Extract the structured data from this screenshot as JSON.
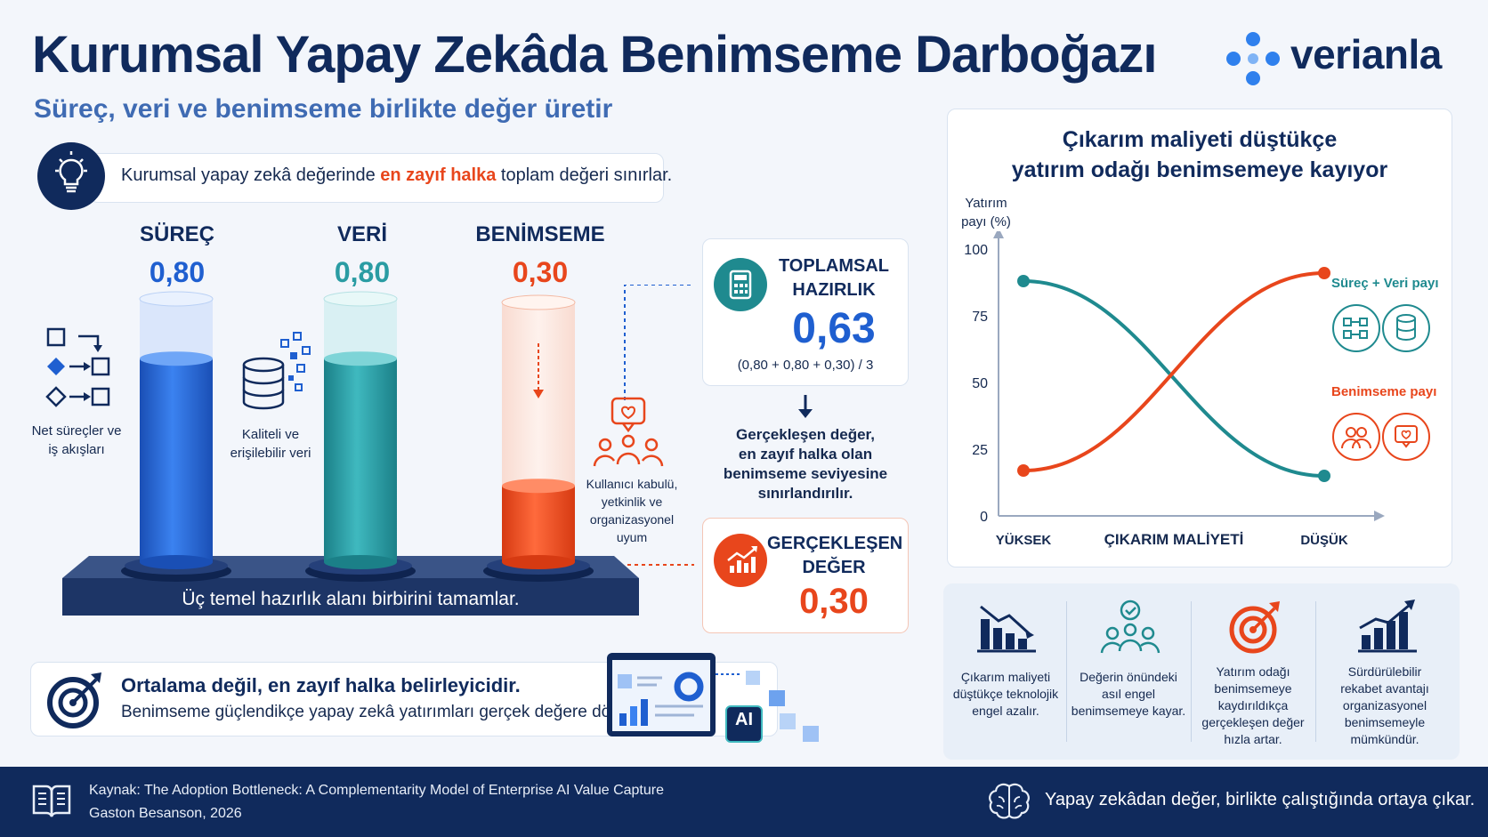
{
  "header": {
    "title": "Kurumsal Yapay Zekâda Benimseme Darboğazı",
    "subtitle": "Süreç, veri ve benimseme birlikte değer üretir",
    "brand": "verianla"
  },
  "insight": {
    "before": "Kurumsal yapay zekâ değerinde ",
    "highlight": "en zayıf halka",
    "after": " toplam değeri sınırlar."
  },
  "pillars": [
    {
      "title": "SÜREÇ",
      "value_label": "0,80",
      "value": 0.8,
      "color": "#1f5fd0",
      "caption_lines": [
        "Net süreçler ve",
        "iş akışları"
      ]
    },
    {
      "title": "VERİ",
      "value_label": "0,80",
      "value": 0.8,
      "color": "#2a9ca3",
      "caption_lines": [
        "Kaliteli ve",
        "erişilebilir veri"
      ]
    },
    {
      "title": "BENİMSEME",
      "value_label": "0,30",
      "value": 0.3,
      "color": "#e8461c",
      "caption_lines": [
        "Kullanıcı kabulü,",
        "yetkinlik ve",
        "organizasyonel",
        "uyum"
      ]
    }
  ],
  "platform_label": "Üç temel hazırlık alanı birbirini tamamlar.",
  "readiness": {
    "title_lines": [
      "TOPLAMSAL",
      "HAZIRLIK"
    ],
    "value": "0,63",
    "formula": "(0,80 + 0,80 + 0,30) / 3"
  },
  "realized_note_lines": [
    "Gerçekleşen değer,",
    "en zayıf halka olan",
    "benimseme seviyesine",
    "sınırlandırılır."
  ],
  "realized": {
    "title_lines": [
      "GERÇEKLEŞEN",
      "DEĞER"
    ],
    "value": "0,30"
  },
  "bottom_card": {
    "title": "Ortalama değil, en zayıf halka belirleyicidir.",
    "text": "Benimseme güçlendikçe yapay zekâ yatırımları gerçek değere dönüşür.",
    "ai_badge": "AI"
  },
  "chart_data": {
    "type": "line",
    "title_lines": [
      "Çıkarım maliyeti düştükçe",
      "yatırım odağı benimsemeye kayıyor"
    ],
    "ylabel_lines": [
      "Yatırım",
      "payı (%)"
    ],
    "xlabel": "ÇIKARIM MALİYETİ",
    "x_categories": [
      "YÜKSEK",
      "DÜŞÜK"
    ],
    "yticks": [
      0,
      25,
      50,
      75,
      100
    ],
    "ylim": [
      0,
      100
    ],
    "grid": false,
    "series": [
      {
        "name": "Süreç + Veri payı",
        "color": "#1f8a8f",
        "values": [
          88,
          15
        ]
      },
      {
        "name": "Benimseme payı",
        "color": "#e8461c",
        "values": [
          17,
          91
        ]
      }
    ]
  },
  "icon_facts": [
    {
      "icon": "declining-chart-icon",
      "lines": [
        "Çıkarım maliyeti",
        "düştükçe teknolojik",
        "engel azalır."
      ]
    },
    {
      "icon": "people-check-icon",
      "lines": [
        "Değerin önündeki",
        "asıl engel",
        "benimsemeye kayar."
      ]
    },
    {
      "icon": "target-icon",
      "lines": [
        "Yatırım odağı",
        "benimsemeye",
        "kaydırıldıkça",
        "gerçekleşen değer",
        "hızla artar."
      ]
    },
    {
      "icon": "growth-chart-icon",
      "lines": [
        "Sürdürülebilir",
        "rekabet avantajı",
        "organizasyonel",
        "benimsemeyle",
        "mümkündür."
      ]
    }
  ],
  "footer": {
    "source": "Kaynak: The Adoption Bottleneck: A Complementarity Model of Enterprise AI Value Capture",
    "author": "Gaston Besanson, 2026",
    "tagline": "Yapay zekâdan değer, birlikte çalıştığında ortaya çıkar."
  }
}
